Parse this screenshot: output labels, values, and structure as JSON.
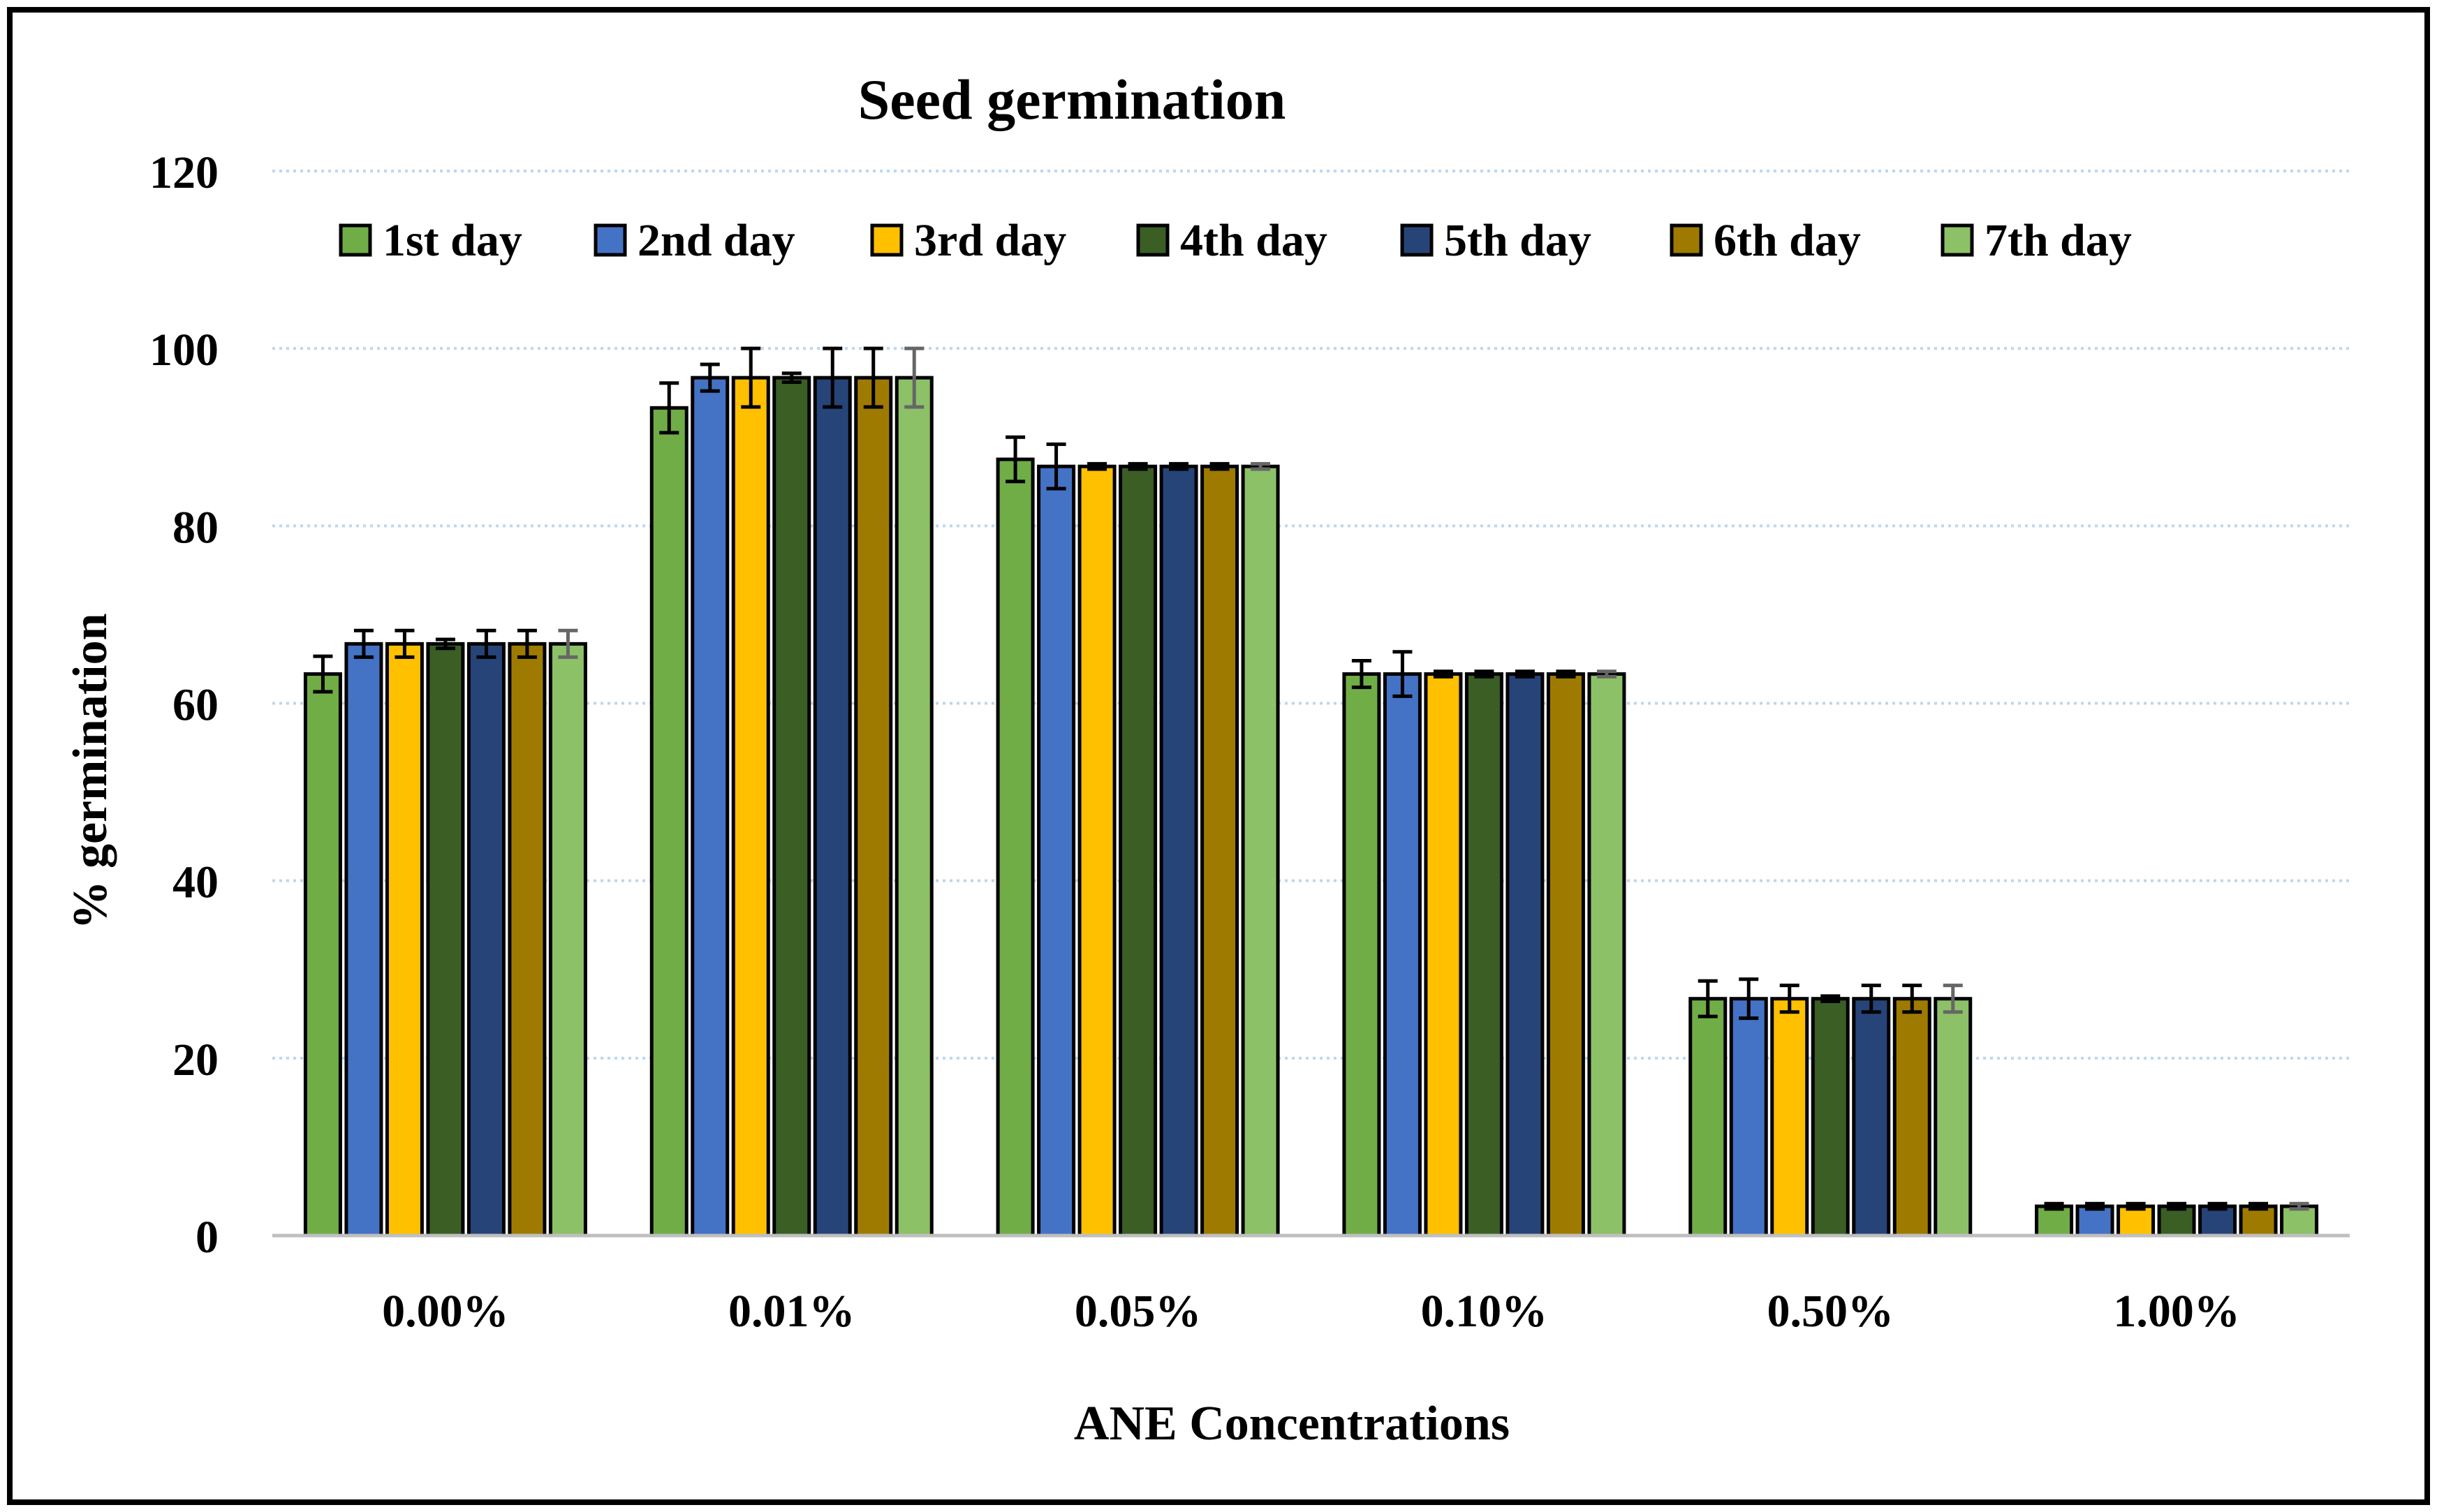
{
  "chart_data": {
    "type": "bar",
    "title": "Seed germination",
    "xlabel": "ANE Concentrations",
    "ylabel": "% germination",
    "ylim": [
      0,
      120
    ],
    "yticks": [
      0,
      20,
      40,
      60,
      80,
      100,
      120
    ],
    "ytick_labels": [
      "0",
      "20",
      "40",
      "60",
      "80",
      "100",
      "120"
    ],
    "grid": "horizontal dotted",
    "legend_position": "top",
    "categories": [
      "0.00%",
      "0.01%",
      "0.05%",
      "0.10%",
      "0.50%",
      "1.00%"
    ],
    "series": [
      {
        "name": "1st day",
        "color": "#70AD47",
        "values": [
          63.3,
          93.3,
          87.5,
          63.3,
          26.7,
          3.3
        ],
        "errors": [
          2.0,
          2.8,
          2.5,
          1.5,
          2.0,
          0.3
        ]
      },
      {
        "name": "2nd day",
        "color": "#4472C4",
        "values": [
          66.7,
          96.7,
          86.7,
          63.3,
          26.7,
          3.3
        ],
        "errors": [
          1.5,
          1.5,
          2.5,
          2.5,
          2.2,
          0.3
        ]
      },
      {
        "name": "3rd day",
        "color": "#FFC000",
        "values": [
          66.7,
          96.7,
          86.7,
          63.3,
          26.7,
          3.3
        ],
        "errors": [
          1.5,
          3.3,
          0.3,
          0.3,
          1.5,
          0.3
        ]
      },
      {
        "name": "4th day",
        "color": "#3A5E24",
        "values": [
          66.7,
          96.7,
          86.7,
          63.3,
          26.7,
          3.3
        ],
        "errors": [
          0.5,
          0.5,
          0.3,
          0.3,
          0.3,
          0.3
        ]
      },
      {
        "name": "5th day",
        "color": "#264478",
        "values": [
          66.7,
          96.7,
          86.7,
          63.3,
          26.7,
          3.3
        ],
        "errors": [
          1.5,
          3.3,
          0.3,
          0.3,
          1.5,
          0.3
        ]
      },
      {
        "name": "6th day",
        "color": "#9E7B00",
        "values": [
          66.7,
          96.7,
          86.7,
          63.3,
          26.7,
          3.3
        ],
        "errors": [
          1.5,
          3.3,
          0.3,
          0.3,
          1.5,
          0.3
        ]
      },
      {
        "name": "7th day",
        "color": "#8CC168",
        "values": [
          66.7,
          96.7,
          86.7,
          63.3,
          26.7,
          3.3
        ],
        "errors": [
          1.5,
          3.3,
          0.3,
          0.3,
          1.5,
          0.3
        ]
      }
    ]
  }
}
